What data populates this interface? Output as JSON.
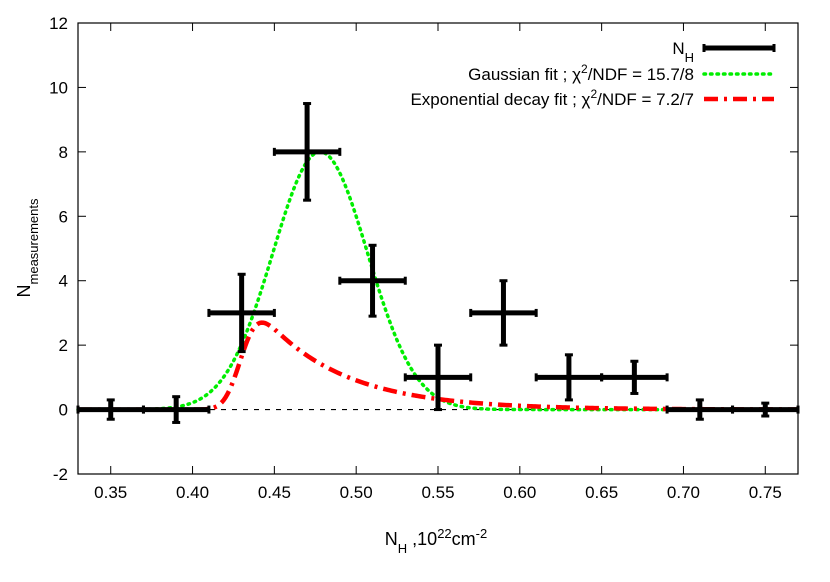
{
  "chart_data": {
    "type": "scatter",
    "xlabel": {
      "main": "N",
      "sub": "H",
      "rest": " ,10",
      "sup": "22",
      "unit": "cm",
      "unit_sup": "-2"
    },
    "ylabel": {
      "main": "N",
      "sub": "measurements"
    },
    "xlim": [
      0.33,
      0.77
    ],
    "ylim": [
      -2,
      12
    ],
    "x_ticks": [
      0.35,
      0.4,
      0.45,
      0.5,
      0.55,
      0.6,
      0.65,
      0.7,
      0.75
    ],
    "x_tick_labels": [
      "0.35",
      "0.40",
      "0.45",
      "0.50",
      "0.55",
      "0.60",
      "0.65",
      "0.70",
      "0.75"
    ],
    "y_ticks": [
      -2,
      0,
      2,
      4,
      6,
      8,
      10,
      12
    ],
    "y_tick_labels": [
      "-2",
      "0",
      "2",
      "4",
      "6",
      "8",
      "10",
      "12"
    ],
    "grid": false,
    "zero_line": true,
    "legend_position": "top-right",
    "legend": [
      {
        "text_main": "N",
        "text_sub": "H",
        "text_rest": "",
        "style": "errorbar",
        "color": "#000000"
      },
      {
        "text_main": "Gaussian fit ; χ",
        "text_sup": "2",
        "text_rest": "/NDF = 15.7/8",
        "style": "dotted",
        "color": "#00ee00"
      },
      {
        "text_main": "Exponential decay fit ; χ",
        "text_sup": "2",
        "text_rest": "/NDF = 7.2/7",
        "style": "dashdot",
        "color": "#ff0000"
      }
    ],
    "series": [
      {
        "name": "N_H",
        "style": "errorbar",
        "color": "#000000",
        "points": [
          {
            "x": 0.35,
            "y": 0,
            "xerr": 0.02,
            "yerr": 0.3
          },
          {
            "x": 0.39,
            "y": 0,
            "xerr": 0.02,
            "yerr": 0.4
          },
          {
            "x": 0.43,
            "y": 3,
            "xerr": 0.02,
            "yerr": 1.2
          },
          {
            "x": 0.47,
            "y": 8,
            "xerr": 0.02,
            "yerr": 1.5
          },
          {
            "x": 0.51,
            "y": 4,
            "xerr": 0.02,
            "yerr": 1.1
          },
          {
            "x": 0.55,
            "y": 1,
            "xerr": 0.02,
            "yerr": 1.0
          },
          {
            "x": 0.59,
            "y": 3,
            "xerr": 0.02,
            "yerr": 1.0
          },
          {
            "x": 0.63,
            "y": 1,
            "xerr": 0.02,
            "yerr": 0.7
          },
          {
            "x": 0.67,
            "y": 1,
            "xerr": 0.02,
            "yerr": 0.5
          },
          {
            "x": 0.71,
            "y": 0,
            "xerr": 0.02,
            "yerr": 0.3
          },
          {
            "x": 0.75,
            "y": 0,
            "xerr": 0.02,
            "yerr": 0.2
          }
        ]
      },
      {
        "name": "Gaussian fit",
        "style": "dotted",
        "color": "#00ee00",
        "model": "gaussian",
        "params": {
          "amplitude": 8.0,
          "mean": 0.478,
          "sigma": 0.029
        }
      },
      {
        "name": "Exponential decay fit",
        "style": "dashdot",
        "color": "#ff0000",
        "model": "exp_gauss_convolved",
        "params": {
          "norm": 1.87,
          "mu": 0.43,
          "sigma": 0.008,
          "tau": 0.049
        }
      }
    ]
  }
}
